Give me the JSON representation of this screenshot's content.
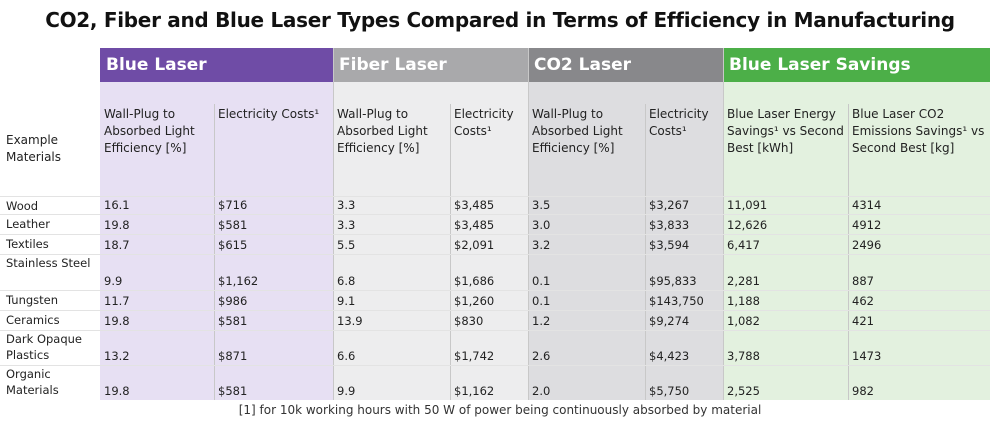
{
  "title": "CO2, Fiber and Blue Laser Types Compared in Terms of Efficiency in Manufacturing",
  "row_header": "Example Materials",
  "groups": [
    {
      "name": "Blue Laser",
      "header_color": "#6f4ca6",
      "bg_color": "#e7e0f3",
      "columns": [
        "Wall-Plug to Absorbed Light Efficiency [%]",
        "Electricity Costs¹"
      ]
    },
    {
      "name": "Fiber Laser",
      "header_color": "#a9a9ab",
      "bg_color": "#ededee",
      "columns": [
        "Wall-Plug to Absorbed Light Efficiency [%]",
        "Electricity Costs¹"
      ]
    },
    {
      "name": "CO2 Laser",
      "header_color": "#88888b",
      "bg_color": "#dddde0",
      "columns": [
        "Wall-Plug to Absorbed Light Efficiency [%]",
        "Electricity Costs¹"
      ]
    },
    {
      "name": "Blue Laser Savings",
      "header_color": "#4caf48",
      "bg_color": "#e3f1df",
      "columns": [
        "Blue Laser Energy Savings¹ vs Second Best [kWh]",
        "Blue Laser CO2 Emissions Savings¹ vs Second Best [kg]"
      ]
    }
  ],
  "rows": [
    {
      "material": "Wood",
      "values": [
        "16.1",
        "$716",
        "3.3",
        "$3,485",
        "3.5",
        "$3,267",
        "11,091",
        "4314"
      ]
    },
    {
      "material": "Leather",
      "values": [
        "19.8",
        "$581",
        "3.3",
        "$3,485",
        "3.0",
        "$3,833",
        "12,626",
        "4912"
      ]
    },
    {
      "material": "Textiles",
      "values": [
        "18.7",
        "$615",
        "5.5",
        "$2,091",
        "3.2",
        "$3,594",
        "6,417",
        "2496"
      ]
    },
    {
      "material": "Stainless Steel",
      "values": [
        "9.9",
        "$1,162",
        "6.8",
        "$1,686",
        "0.1",
        "$95,833",
        "2,281",
        "887"
      ]
    },
    {
      "material": "Tungsten",
      "values": [
        "11.7",
        "$986",
        "9.1",
        "$1,260",
        "0.1",
        "$143,750",
        "1,188",
        "462"
      ]
    },
    {
      "material": "Ceramics",
      "values": [
        "19.8",
        "$581",
        "13.9",
        "$830",
        "1.2",
        "$9,274",
        "1,082",
        "421"
      ]
    },
    {
      "material": "Dark Opaque Plastics",
      "values": [
        "13.2",
        "$871",
        "6.6",
        "$1,742",
        "2.6",
        "$4,423",
        "3,788",
        "1473"
      ]
    },
    {
      "material": "Organic Materials",
      "values": [
        "19.8",
        "$581",
        "9.9",
        "$1,162",
        "2.0",
        "$5,750",
        "2,525",
        "982"
      ]
    }
  ],
  "footnote": "[1] for 10k working hours with 50 W of power being continuously absorbed by material"
}
